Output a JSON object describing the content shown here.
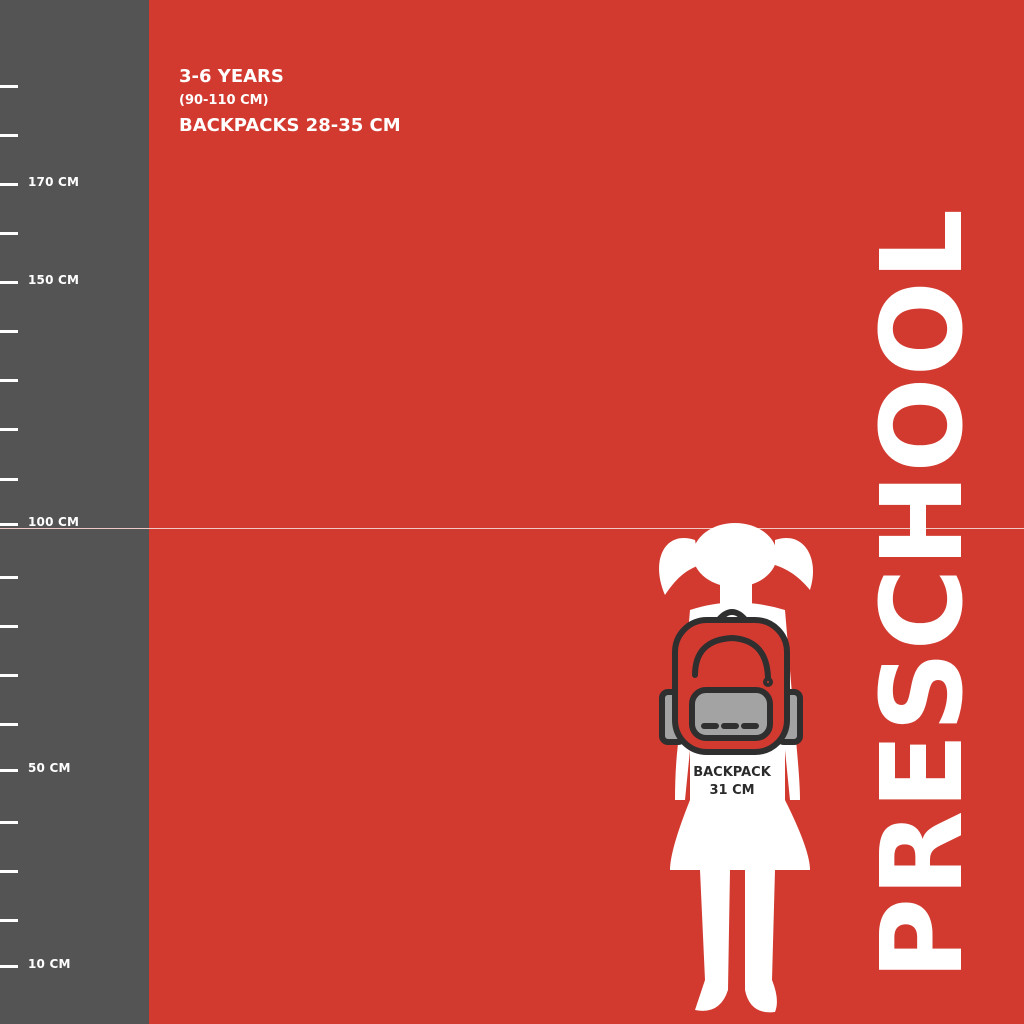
{
  "ruler": {
    "ticks": [
      {
        "label": ""
      },
      {
        "label": ""
      },
      {
        "label": "170 CM"
      },
      {
        "label": ""
      },
      {
        "label": "150 CM"
      },
      {
        "label": ""
      },
      {
        "label": ""
      },
      {
        "label": ""
      },
      {
        "label": ""
      },
      {
        "label": "100 CM"
      },
      {
        "label": ""
      },
      {
        "label": ""
      },
      {
        "label": ""
      },
      {
        "label": ""
      },
      {
        "label": "50 CM"
      },
      {
        "label": ""
      },
      {
        "label": ""
      },
      {
        "label": ""
      },
      {
        "label": "10 CM"
      }
    ]
  },
  "header": {
    "age": "3-6 YEARS",
    "height_range": "(90-110 CM)",
    "backpack_range": "BACKPACKS 28-35 CM"
  },
  "title": "PRESCHOOL",
  "backpack": {
    "line1": "BACKPACK",
    "line2": "31 CM"
  },
  "colors": {
    "background": "#d23a30",
    "ruler": "#555455",
    "text": "#ffffff",
    "backpack_outline": "#2f2f2f",
    "backpack_pocket": "#a3a3a3"
  }
}
